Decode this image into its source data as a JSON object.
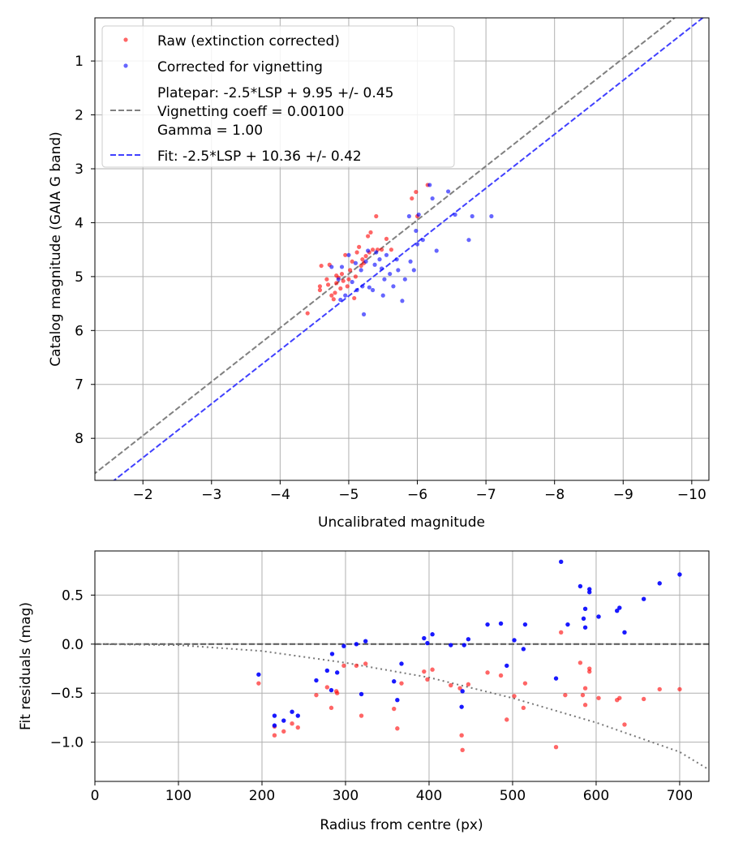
{
  "chart_data": [
    {
      "type": "scatter",
      "xlabel": "Uncalibrated magnitude",
      "ylabel": "Catalog magnitude (GAIA G band)",
      "xlim": [
        -1.3,
        -10.25
      ],
      "ylim": [
        8.78,
        0.2
      ],
      "x_inverted": true,
      "y_inverted": true,
      "grid": true,
      "legend_position": "upper-left",
      "xticks": [
        -2,
        -3,
        -4,
        -5,
        -6,
        -7,
        -8,
        -9,
        -10
      ],
      "xtick_labels": [
        "−2",
        "−3",
        "−4",
        "−5",
        "−6",
        "−7",
        "−8",
        "−9",
        "−10"
      ],
      "yticks": [
        1,
        2,
        3,
        4,
        5,
        6,
        7,
        8
      ],
      "ytick_labels": [
        "1",
        "2",
        "3",
        "4",
        "5",
        "6",
        "7",
        "8"
      ],
      "series": [
        {
          "name": "Raw (extinction corrected)",
          "kind": "scatter",
          "color": "#ff0000",
          "points": [
            [
              -4.4,
              5.68
            ],
            [
              -4.58,
              5.25
            ],
            [
              -4.58,
              5.18
            ],
            [
              -4.6,
              4.8
            ],
            [
              -4.68,
              5.05
            ],
            [
              -4.7,
              5.15
            ],
            [
              -4.72,
              4.78
            ],
            [
              -4.75,
              5.35
            ],
            [
              -4.78,
              5.42
            ],
            [
              -4.8,
              5.3
            ],
            [
              -4.82,
              4.98
            ],
            [
              -4.82,
              5.12
            ],
            [
              -4.85,
              5.02
            ],
            [
              -4.88,
              5.22
            ],
            [
              -4.9,
              4.95
            ],
            [
              -4.92,
              5.08
            ],
            [
              -4.95,
              4.6
            ],
            [
              -4.98,
              5.18
            ],
            [
              -5.0,
              5.05
            ],
            [
              -5.02,
              4.88
            ],
            [
              -5.05,
              4.72
            ],
            [
              -5.08,
              5.4
            ],
            [
              -5.1,
              5.0
            ],
            [
              -5.12,
              4.55
            ],
            [
              -5.15,
              4.45
            ],
            [
              -5.18,
              4.8
            ],
            [
              -5.2,
              4.68
            ],
            [
              -5.22,
              4.75
            ],
            [
              -5.25,
              4.62
            ],
            [
              -5.28,
              4.25
            ],
            [
              -5.3,
              4.55
            ],
            [
              -5.32,
              4.18
            ],
            [
              -5.35,
              4.5
            ],
            [
              -5.4,
              3.88
            ],
            [
              -5.42,
              4.5
            ],
            [
              -5.48,
              4.5
            ],
            [
              -5.55,
              4.3
            ],
            [
              -5.62,
              4.5
            ],
            [
              -5.92,
              3.55
            ],
            [
              -5.98,
              3.43
            ],
            [
              -6.0,
              3.88
            ],
            [
              -6.15,
              3.3
            ]
          ]
        },
        {
          "name": "Corrected for vignetting",
          "kind": "scatter",
          "color": "#0000ff",
          "points": [
            [
              -4.75,
              4.82
            ],
            [
              -4.85,
              5.05
            ],
            [
              -4.88,
              5.43
            ],
            [
              -4.9,
              4.82
            ],
            [
              -4.95,
              5.35
            ],
            [
              -5.0,
              4.6
            ],
            [
              -5.05,
              5.1
            ],
            [
              -5.1,
              4.75
            ],
            [
              -5.12,
              5.25
            ],
            [
              -5.18,
              4.88
            ],
            [
              -5.2,
              5.18
            ],
            [
              -5.22,
              5.7
            ],
            [
              -5.25,
              4.72
            ],
            [
              -5.28,
              4.52
            ],
            [
              -5.3,
              5.2
            ],
            [
              -5.35,
              5.25
            ],
            [
              -5.38,
              4.78
            ],
            [
              -5.4,
              4.55
            ],
            [
              -5.45,
              4.68
            ],
            [
              -5.48,
              4.85
            ],
            [
              -5.5,
              5.35
            ],
            [
              -5.52,
              5.05
            ],
            [
              -5.55,
              4.6
            ],
            [
              -5.6,
              4.95
            ],
            [
              -5.65,
              5.18
            ],
            [
              -5.7,
              4.68
            ],
            [
              -5.72,
              4.88
            ],
            [
              -5.78,
              5.45
            ],
            [
              -5.82,
              5.05
            ],
            [
              -5.88,
              3.88
            ],
            [
              -5.9,
              4.72
            ],
            [
              -5.95,
              4.88
            ],
            [
              -5.98,
              4.15
            ],
            [
              -6.0,
              4.4
            ],
            [
              -6.02,
              3.85
            ],
            [
              -6.08,
              4.32
            ],
            [
              -6.18,
              3.3
            ],
            [
              -6.22,
              3.55
            ],
            [
              -6.28,
              4.52
            ],
            [
              -6.45,
              3.42
            ],
            [
              -6.55,
              3.85
            ],
            [
              -6.75,
              4.32
            ],
            [
              -6.8,
              3.88
            ],
            [
              -7.08,
              3.88
            ]
          ]
        },
        {
          "name": "Platepar: -2.5*LSP + 9.95 +/- 0.45\nVignetting coeff = 0.00100\nGamma = 1.00",
          "kind": "line",
          "style": "dashed",
          "color": "#808080",
          "slope_in_lsp": -2.5,
          "intercept": 9.95
        },
        {
          "name": "Fit: -2.5*LSP + 10.36 +/- 0.42",
          "kind": "line",
          "style": "dashed",
          "color": "#4040ff",
          "slope_in_lsp": -2.5,
          "intercept": 10.36
        }
      ],
      "legend": [
        {
          "marker": "dot",
          "color": "#ff0000",
          "lines": [
            "Raw (extinction corrected)"
          ]
        },
        {
          "marker": "dot",
          "color": "#0000ff",
          "lines": [
            "Corrected for vignetting"
          ]
        },
        {
          "marker": "dash",
          "color": "#808080",
          "lines": [
            "Platepar: -2.5*LSP + 9.95 +/- 0.45",
            "Vignetting coeff = 0.00100",
            "Gamma = 1.00"
          ]
        },
        {
          "marker": "dash",
          "color": "#4040ff",
          "lines": [
            "Fit: -2.5*LSP + 10.36 +/- 0.42"
          ]
        }
      ]
    },
    {
      "type": "scatter",
      "xlabel": "Radius from centre (px)",
      "ylabel": "Fit residuals (mag)",
      "xlim": [
        0,
        735
      ],
      "ylim": [
        -1.4,
        0.95
      ],
      "grid": true,
      "xticks": [
        0,
        100,
        200,
        300,
        400,
        500,
        600,
        700
      ],
      "xtick_labels": [
        "0",
        "100",
        "200",
        "300",
        "400",
        "500",
        "600",
        "700"
      ],
      "yticks": [
        0.5,
        0.0,
        -0.5,
        -1.0
      ],
      "ytick_labels": [
        "0.5",
        "0.0",
        "−0.5",
        "−1.0"
      ],
      "reference_line": {
        "y": 0.0,
        "style": "dashed",
        "color": "#555555"
      },
      "model_curve": {
        "style": "dotted",
        "color": "#777777",
        "x": [
          0,
          100,
          200,
          300,
          400,
          500,
          600,
          700,
          735
        ],
        "y": [
          0.0,
          -0.01,
          -0.07,
          -0.19,
          -0.34,
          -0.55,
          -0.8,
          -1.1,
          -1.28
        ]
      },
      "series": [
        {
          "name": "Raw (extinction corrected)",
          "color": "#ff0000",
          "points": [
            [
              196,
              -0.4
            ],
            [
              215,
              -0.84
            ],
            [
              215,
              -0.93
            ],
            [
              226,
              -0.89
            ],
            [
              236,
              -0.81
            ],
            [
              243,
              -0.85
            ],
            [
              265,
              -0.52
            ],
            [
              278,
              -0.44
            ],
            [
              283,
              -0.65
            ],
            [
              289,
              -0.48
            ],
            [
              290,
              -0.5
            ],
            [
              298,
              -0.22
            ],
            [
              313,
              -0.22
            ],
            [
              319,
              -0.73
            ],
            [
              324,
              -0.2
            ],
            [
              358,
              -0.66
            ],
            [
              362,
              -0.86
            ],
            [
              367,
              -0.4
            ],
            [
              394,
              -0.28
            ],
            [
              398,
              -0.36
            ],
            [
              404,
              -0.26
            ],
            [
              426,
              -0.42
            ],
            [
              437,
              -0.45
            ],
            [
              439,
              -0.93
            ],
            [
              440,
              -1.08
            ],
            [
              447,
              -0.41
            ],
            [
              470,
              -0.29
            ],
            [
              486,
              -0.32
            ],
            [
              493,
              -0.77
            ],
            [
              502,
              -0.53
            ],
            [
              513,
              -0.65
            ],
            [
              515,
              -0.4
            ],
            [
              552,
              -1.05
            ],
            [
              558,
              0.12
            ],
            [
              563,
              -0.52
            ],
            [
              581,
              -0.19
            ],
            [
              584,
              -0.52
            ],
            [
              587,
              -0.45
            ],
            [
              587,
              -0.62
            ],
            [
              592,
              -0.25
            ],
            [
              592,
              -0.28
            ],
            [
              603,
              -0.55
            ],
            [
              625,
              -0.57
            ],
            [
              628,
              -0.55
            ],
            [
              634,
              -0.82
            ],
            [
              657,
              -0.56
            ],
            [
              676,
              -0.46
            ],
            [
              700,
              -0.46
            ]
          ]
        },
        {
          "name": "Corrected for vignetting",
          "color": "#0000ff",
          "points": [
            [
              196,
              -0.31
            ],
            [
              215,
              -0.73
            ],
            [
              215,
              -0.83
            ],
            [
              226,
              -0.78
            ],
            [
              236,
              -0.69
            ],
            [
              243,
              -0.73
            ],
            [
              265,
              -0.37
            ],
            [
              278,
              -0.27
            ],
            [
              283,
              -0.47
            ],
            [
              284,
              -0.1
            ],
            [
              290,
              -0.29
            ],
            [
              298,
              -0.02
            ],
            [
              313,
              0.0
            ],
            [
              319,
              -0.51
            ],
            [
              324,
              0.03
            ],
            [
              358,
              -0.38
            ],
            [
              362,
              -0.57
            ],
            [
              367,
              -0.2
            ],
            [
              394,
              0.06
            ],
            [
              398,
              0.01
            ],
            [
              404,
              0.1
            ],
            [
              426,
              -0.01
            ],
            [
              439,
              -0.64
            ],
            [
              440,
              -0.48
            ],
            [
              442,
              -0.01
            ],
            [
              447,
              0.05
            ],
            [
              470,
              0.2
            ],
            [
              486,
              0.21
            ],
            [
              493,
              -0.22
            ],
            [
              502,
              0.04
            ],
            [
              513,
              -0.05
            ],
            [
              515,
              0.2
            ],
            [
              552,
              -0.35
            ],
            [
              558,
              0.84
            ],
            [
              566,
              0.2
            ],
            [
              581,
              0.59
            ],
            [
              585,
              0.26
            ],
            [
              587,
              0.36
            ],
            [
              587,
              0.17
            ],
            [
              592,
              0.56
            ],
            [
              592,
              0.53
            ],
            [
              603,
              0.28
            ],
            [
              625,
              0.34
            ],
            [
              628,
              0.37
            ],
            [
              634,
              0.12
            ],
            [
              657,
              0.46
            ],
            [
              676,
              0.62
            ],
            [
              700,
              0.71
            ]
          ]
        }
      ]
    }
  ]
}
